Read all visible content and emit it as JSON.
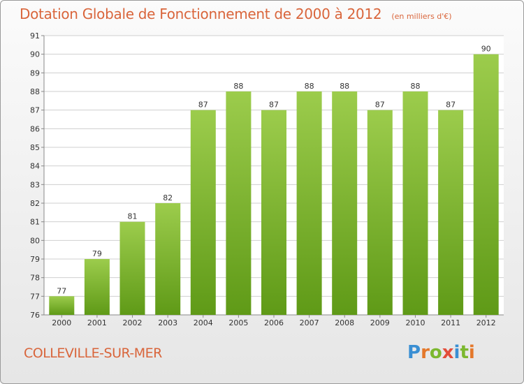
{
  "header": {
    "title": "Dotation Globale de Fonctionnement de 2000 à 2012",
    "unit": "(en milliers d'€)"
  },
  "footer": {
    "city": "COLLEVILLE-SUR-MER",
    "logo_letters": [
      "P",
      "r",
      "o",
      "x",
      "i",
      "t",
      "i"
    ],
    "logo_colors": [
      "#3a8fd3",
      "#e4782b",
      "#7cb82f",
      "#e34d3a",
      "#3a8fd3",
      "#7cb82f",
      "#e4782b"
    ]
  },
  "chart_data": {
    "type": "bar",
    "categories": [
      "2000",
      "2001",
      "2002",
      "2003",
      "2004",
      "2005",
      "2006",
      "2007",
      "2008",
      "2009",
      "2010",
      "2011",
      "2012"
    ],
    "values": [
      77,
      79,
      81,
      82,
      87,
      88,
      87,
      88,
      88,
      87,
      88,
      87,
      90
    ],
    "title": "Dotation Globale de Fonctionnement de 2000 à 2012",
    "subtitle": "(en milliers d'€)",
    "ylim": [
      76,
      91
    ],
    "yticks": [
      76,
      77,
      78,
      79,
      80,
      81,
      82,
      83,
      84,
      85,
      86,
      87,
      88,
      89,
      90,
      91
    ],
    "grid": true,
    "colors": {
      "bar_top": "#9ccc4c",
      "bar_bottom": "#5f9a17",
      "grid": "#cfcfcf",
      "text": "#333333"
    }
  }
}
